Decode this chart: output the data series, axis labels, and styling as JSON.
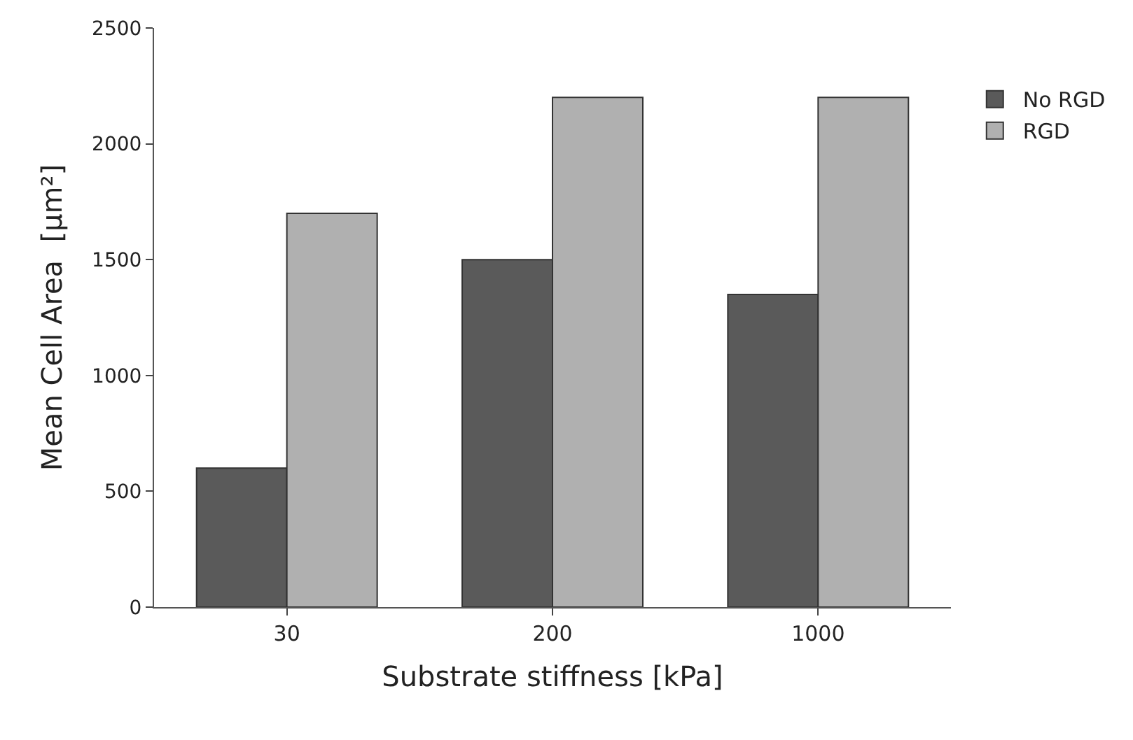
{
  "chart_data": {
    "type": "bar",
    "categories": [
      "30",
      "200",
      "1000"
    ],
    "series": [
      {
        "name": "No RGD",
        "color": "#5a5a5a",
        "values": [
          600,
          1500,
          1350
        ]
      },
      {
        "name": "RGD",
        "color": "#b0b0b0",
        "values": [
          1700,
          2200,
          2200
        ]
      }
    ],
    "xlabel": "Substrate stiffness [kPa]",
    "ylabel": "Mean Cell Area  [µm²]",
    "ylim": [
      0,
      2500
    ],
    "yticks": [
      0,
      500,
      1000,
      1500,
      2000,
      2500
    ],
    "grid": false,
    "legend": "right"
  }
}
